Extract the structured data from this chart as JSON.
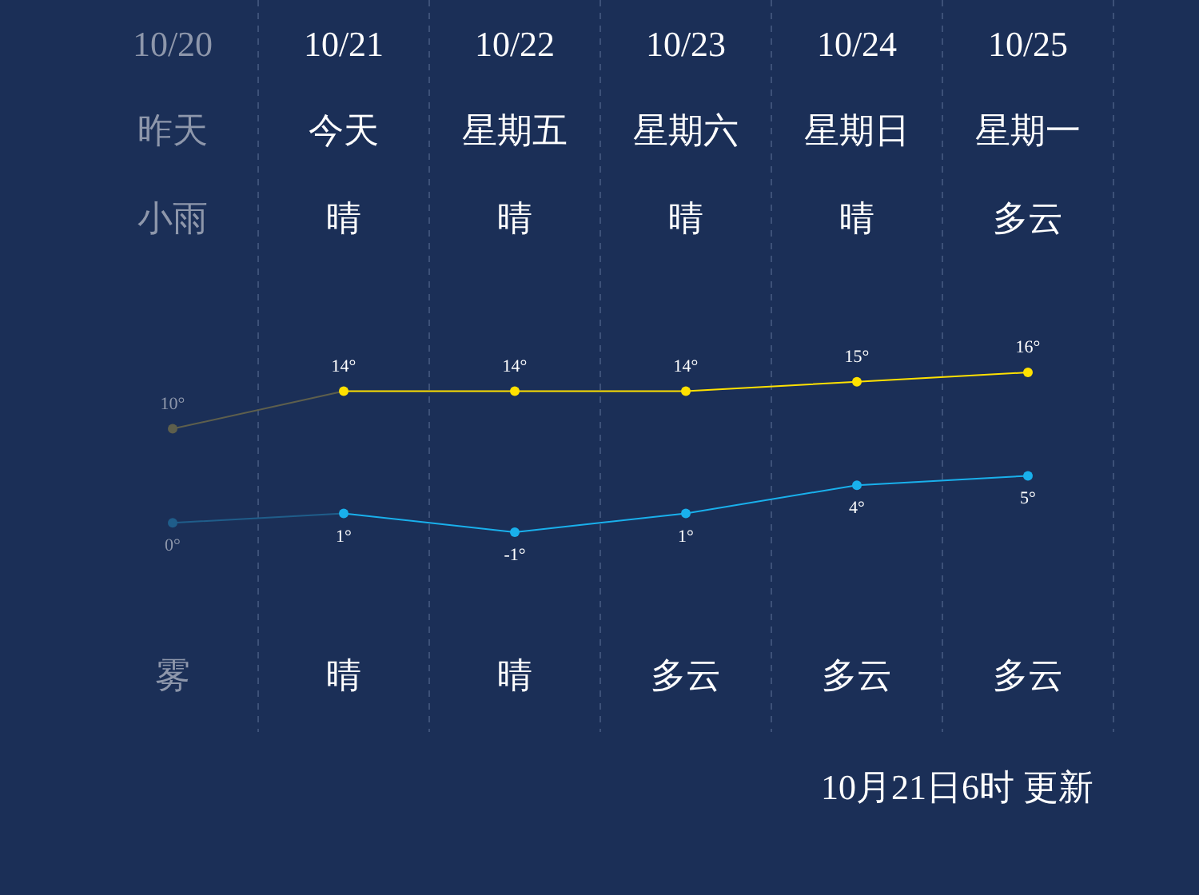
{
  "chart_data": {
    "type": "line",
    "categories": [
      "10/20",
      "10/21",
      "10/22",
      "10/23",
      "10/24",
      "10/25"
    ],
    "series": [
      {
        "color": "#ffe100",
        "colors": [
          "#5e5f4c",
          "#ffe100",
          "#ffe100",
          "#ffe100",
          "#ffe100",
          "#ffe100"
        ],
        "values": [
          10,
          14,
          14,
          14,
          15,
          16
        ],
        "value_labels": [
          "10°",
          "14°",
          "14°",
          "14°",
          "15°",
          "16°"
        ]
      },
      {
        "color": "#19b0ec",
        "colors": [
          "#1f5d8a",
          "#19b0ec",
          "#19b0ec",
          "#19b0ec",
          "#19b0ec",
          "#19b0ec"
        ],
        "values": [
          0,
          1,
          -1,
          1,
          4,
          5
        ],
        "value_labels": [
          "0°",
          "1°",
          "-1°",
          "1°",
          "4°",
          "5°"
        ]
      }
    ],
    "marker": "circle",
    "grid": "x",
    "annotations": [
      "昨天",
      "今天",
      "星期五",
      "星期六",
      "星期日",
      "星期一",
      "小雨",
      "晴",
      "晴",
      "晴",
      "晴",
      "多云",
      "雾",
      "晴",
      "晴",
      "多云",
      "多云",
      "多云",
      "10月21日6时 更新"
    ]
  }
}
